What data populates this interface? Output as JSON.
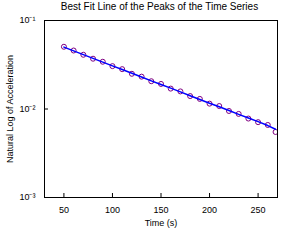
{
  "chart_data": {
    "type": "scatter",
    "title": "Best Fit Line of the Peaks of the Time Series",
    "x_label": "Time (s)",
    "y_label": "Natural Log of Acceleration",
    "log": "y",
    "grid": false,
    "x": [
      50,
      60,
      70,
      80,
      90,
      100,
      110,
      120,
      130,
      140,
      150,
      160,
      170,
      180,
      190,
      200,
      210,
      220,
      230,
      240,
      250,
      260,
      268
    ],
    "series": [
      {
        "type": "scatter",
        "marker": "circle",
        "color": "#800080",
        "values": [
          0.0505,
          0.0458,
          0.041,
          0.037,
          0.0342,
          0.0305,
          0.0282,
          0.025,
          0.0232,
          0.0206,
          0.0192,
          0.017,
          0.0158,
          0.014,
          0.013,
          0.0115,
          0.0108,
          0.0095,
          0.0088,
          0.0078,
          0.0071,
          0.0066,
          0.0055
        ]
      },
      {
        "type": "line",
        "line_style": "solid",
        "color": "#0000ff",
        "values": [
          0.05,
          0.0454,
          0.0412,
          0.0373,
          0.0339,
          0.0307,
          0.0279,
          0.0253,
          0.023,
          0.0208,
          0.0189,
          0.0172,
          0.0156,
          0.0141,
          0.0128,
          0.0116,
          0.0106,
          0.0096,
          0.0087,
          0.0079,
          0.0072,
          0.0065,
          0.0059
        ]
      }
    ],
    "xlim": [
      30,
      270
    ],
    "xticks": [
      50,
      100,
      150,
      200,
      250
    ],
    "ylim": [
      0.001,
      0.1
    ],
    "yticks": [
      {
        "value": 0.001,
        "label": "10⁻³"
      },
      {
        "value": 0.01,
        "label": "10⁻²"
      },
      {
        "value": 0.1,
        "label": "10⁻¹"
      }
    ]
  }
}
